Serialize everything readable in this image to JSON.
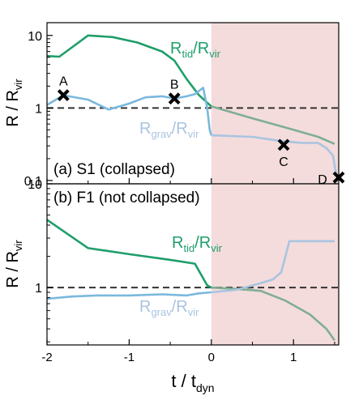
{
  "figure": {
    "xlabel_main": "t / t",
    "xlabel_sub": "dyn"
  },
  "colors": {
    "tidal": "#1f9e6a",
    "grav": "#7ab8dd",
    "grav_faded": "#a9c4e0",
    "tidal_faded": "#7fae94",
    "shade": "#f4dcdc",
    "reference": "#333333",
    "marker": "#000000"
  },
  "chart_data": [
    {
      "type": "line",
      "panel_label": "(a) S1 (collapsed)",
      "ylabel": {
        "main": "R / R",
        "sub": "vir"
      },
      "yscale": "log",
      "xlim": [
        -2,
        1.55
      ],
      "ylim": [
        0.09,
        15
      ],
      "xticks": [
        -2,
        -1,
        0,
        1
      ],
      "xtick_labels": [],
      "yticks": [
        0.1,
        1,
        10
      ],
      "ytick_labels": [
        "0.1",
        "1",
        "10"
      ],
      "shaded_region": {
        "x_from": 0,
        "x_to": 1.55
      },
      "reference_line": {
        "y": 1,
        "style": "dashed"
      },
      "series": [
        {
          "name": "R_tid/R_vir",
          "label_main": "R",
          "label_sub1": "tid",
          "label_mid": "/R",
          "label_sub2": "vir",
          "color_key": "tidal",
          "x": [
            -2.0,
            -1.85,
            -1.5,
            -1.2,
            -0.9,
            -0.6,
            -0.45,
            -0.3,
            -0.15,
            0.0
          ],
          "y": [
            5.2,
            5.1,
            10.0,
            9.5,
            8.0,
            6.0,
            4.5,
            2.5,
            1.5,
            1.05
          ]
        },
        {
          "name": "R_tid/R_vir (t > 0)",
          "color_key": "tidal_faded",
          "x": [
            0.0,
            0.5,
            1.0,
            1.3,
            1.5
          ],
          "y": [
            1.05,
            0.72,
            0.5,
            0.4,
            0.32
          ]
        },
        {
          "name": "R_grav/R_vir",
          "label_main": "R",
          "label_sub1": "grav",
          "label_mid": "/R",
          "label_sub2": "vir",
          "color_key": "grav",
          "x": [
            -2.0,
            -1.8,
            -1.5,
            -1.25,
            -1.0,
            -0.8,
            -0.6,
            -0.45,
            -0.3,
            -0.2,
            -0.1,
            -0.05,
            -0.02,
            0.0
          ],
          "y": [
            1.1,
            1.5,
            1.3,
            0.95,
            1.15,
            1.4,
            1.45,
            1.35,
            1.45,
            1.55,
            1.9,
            1.0,
            0.5,
            0.42
          ]
        },
        {
          "name": "R_grav/R_vir (t > 0)",
          "color_key": "grav_faded",
          "x": [
            0.0,
            0.5,
            0.85,
            1.1,
            1.3,
            1.4,
            1.48,
            1.52
          ],
          "y": [
            0.42,
            0.4,
            0.35,
            0.33,
            0.33,
            0.28,
            0.22,
            0.12
          ]
        }
      ],
      "markers": [
        {
          "label": "A",
          "x": -1.8,
          "y": 1.5
        },
        {
          "label": "B",
          "x": -0.45,
          "y": 1.35
        },
        {
          "label": "C",
          "x": 0.88,
          "y": 0.31
        },
        {
          "label": "D",
          "x": 1.55,
          "y": 0.11
        }
      ]
    },
    {
      "type": "line",
      "panel_label": "(b) F1 (not collapsed)",
      "ylabel": {
        "main": "R / R",
        "sub": "vir"
      },
      "yscale": "log",
      "xlim": [
        -2,
        1.55
      ],
      "ylim": [
        0.28,
        10
      ],
      "xticks": [
        -2,
        -1,
        0,
        1
      ],
      "xtick_labels": [
        "-2",
        "-1",
        "0",
        "1"
      ],
      "yticks": [
        1,
        10
      ],
      "ytick_labels": [
        "1",
        "10"
      ],
      "shaded_region": {
        "x_from": 0,
        "x_to": 1.55
      },
      "reference_line": {
        "y": 1,
        "style": "dashed"
      },
      "series": [
        {
          "name": "R_tid/R_vir",
          "label_main": "R",
          "label_sub1": "tid",
          "label_mid": "/R",
          "label_sub2": "vir",
          "color_key": "tidal",
          "x": [
            -2.0,
            -1.5,
            -1.0,
            -0.5,
            -0.2,
            -0.05,
            0.0
          ],
          "y": [
            4.5,
            2.4,
            2.1,
            1.85,
            1.7,
            1.05,
            1.0
          ]
        },
        {
          "name": "R_tid/R_vir (t > 0)",
          "color_key": "tidal_faded",
          "x": [
            0.0,
            0.3,
            0.6,
            0.9,
            1.2,
            1.4,
            1.5
          ],
          "y": [
            1.0,
            0.97,
            0.93,
            0.75,
            0.55,
            0.4,
            0.31
          ]
        },
        {
          "name": "R_grav/R_vir",
          "label_main": "R",
          "label_sub1": "grav",
          "label_mid": "/R",
          "label_sub2": "vir",
          "color_key": "grav",
          "x": [
            -2.0,
            -1.7,
            -1.4,
            -1.0,
            -0.6,
            -0.3,
            -0.15,
            0.0
          ],
          "y": [
            0.78,
            0.82,
            0.84,
            0.84,
            0.86,
            0.84,
            0.88,
            0.9
          ]
        },
        {
          "name": "R_grav/R_vir (t > 0)",
          "color_key": "grav_faded",
          "x": [
            0.0,
            0.3,
            0.6,
            0.75,
            0.85,
            0.95,
            1.5
          ],
          "y": [
            0.9,
            0.95,
            1.1,
            1.2,
            1.4,
            2.8,
            2.8
          ]
        }
      ],
      "markers": []
    }
  ]
}
